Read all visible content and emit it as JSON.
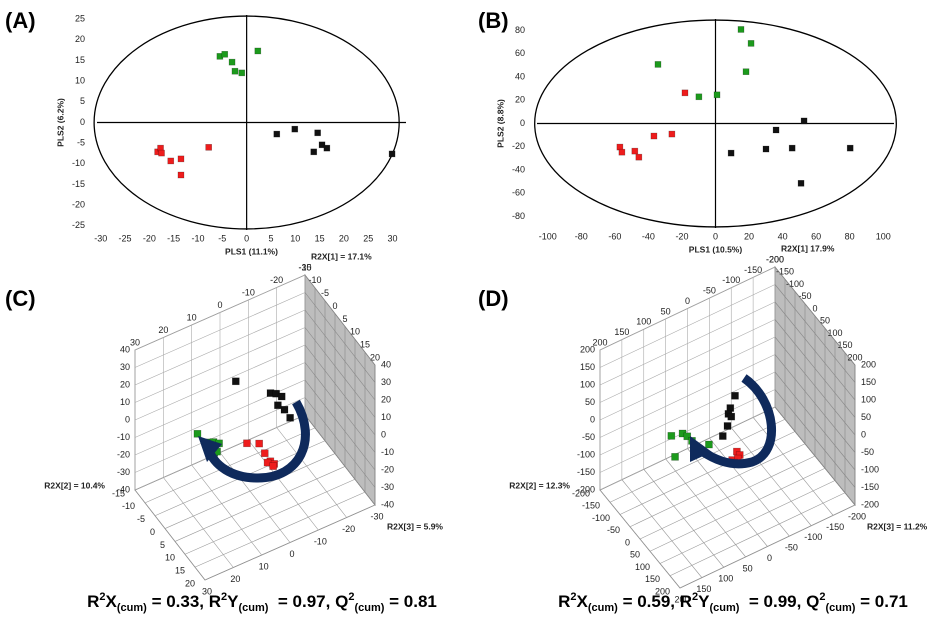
{
  "chart_data": [
    {
      "type": "scatter",
      "panel_label": "(A)",
      "xlabel": "PLS1 (11.1%)",
      "ylabel": "PLS2 (6.2%)",
      "xlim": [
        -32,
        34
      ],
      "ylim": [
        -26,
        26
      ],
      "xticks": [
        -30,
        -25,
        -20,
        -15,
        -10,
        -5,
        0,
        5,
        10,
        15,
        20,
        25,
        30
      ],
      "yticks": [
        -25,
        -20,
        -15,
        -10,
        -5,
        0,
        5,
        10,
        15,
        20,
        25
      ],
      "series": [
        {
          "color": "#1c9a1c",
          "x": [
            -5.5,
            -4.5,
            -3,
            -2.4,
            -1,
            2.3
          ],
          "values": [
            16,
            16.5,
            14.6,
            12.4,
            12,
            17.3
          ]
        },
        {
          "color": "#ee1c1c",
          "x": [
            -18.3,
            -17.7,
            -17.5,
            -15.6,
            -13.5,
            -13.5,
            -7.8
          ],
          "values": [
            -7.1,
            -6.2,
            -7.4,
            -9.3,
            -8.8,
            -12.7,
            -6
          ]
        },
        {
          "color": "#111111",
          "x": [
            6.2,
            9.9,
            14.6,
            13.8,
            15.5,
            16.5,
            29.9
          ],
          "values": [
            -2.8,
            -1.6,
            -2.5,
            -7.1,
            -5.4,
            -6.2,
            -7.6
          ]
        }
      ]
    },
    {
      "type": "scatter",
      "panel_label": "(B)",
      "xlabel": "PLS1 (10.5%)",
      "ylabel": "PLS2 (8.8%)",
      "xlim": [
        -110,
        110
      ],
      "ylim": [
        -90,
        90
      ],
      "xticks": [
        -100,
        -80,
        -60,
        -40,
        -20,
        0,
        20,
        40,
        60,
        80,
        100
      ],
      "yticks": [
        -80,
        -60,
        -40,
        -20,
        0,
        20,
        40,
        60,
        80
      ],
      "series": [
        {
          "color": "#1c9a1c",
          "x": [
            15.2,
            21.2,
            18.2,
            0.9,
            -9.9,
            -34.3
          ],
          "values": [
            81,
            69,
            44.6,
            24.7,
            23,
            50.9
          ]
        },
        {
          "color": "#ee1c1c",
          "x": [
            -18.2,
            -26,
            -36.7,
            -57,
            -48.1,
            -45.7,
            -55.8
          ],
          "values": [
            26.4,
            -9.1,
            -10.8,
            -20.3,
            -23.8,
            -29,
            -24.7
          ]
        },
        {
          "color": "#111111",
          "x": [
            52.8,
            36.1,
            30.1,
            45.7,
            9.3,
            80.3,
            51
          ],
          "values": [
            2.2,
            -5.6,
            -22,
            -21.2,
            -25.5,
            -21.2,
            -51.5
          ]
        }
      ]
    },
    {
      "type": "scatter3d",
      "panel_label": "(C)",
      "ylabel": "R2X[1] = 17.1%",
      "xlabel": "R2X[2] = 10.4%",
      "zlabel": "R2X[3] = 5.9%",
      "ylim": [
        -40,
        40
      ],
      "yticks": [
        -40,
        -30,
        -20,
        -10,
        0,
        10,
        20,
        30,
        40
      ],
      "xlim": [
        -15,
        20
      ],
      "xticks": [
        -15,
        -10,
        -5,
        0,
        5,
        10,
        15,
        20
      ],
      "zlim": [
        -30,
        30
      ],
      "zticks": [
        -30,
        -20,
        -10,
        0,
        10,
        20,
        30
      ],
      "series": [
        {
          "color": "#1c9a1c",
          "x": [
            -12.1,
            -6.5,
            -4.1,
            -1.3,
            -3.7,
            -2.3
          ],
          "values": [
            -17.9,
            -14.6,
            -10.9,
            -7.5,
            -16.4,
            -13.7
          ],
          "z": [
            10,
            10,
            10,
            10,
            10,
            10
          ]
        },
        {
          "color": "#ee1c1c",
          "x": [
            -8.6,
            -2.5,
            0.3,
            3.1,
            5,
            1.7,
            4.5
          ],
          "values": [
            -28.9,
            -20.1,
            -21.5,
            -22,
            -20.7,
            -24.8,
            -22.7
          ],
          "z": [
            -5,
            -5,
            -5,
            -5,
            -5,
            -5,
            -5
          ]
        },
        {
          "color": "#111111",
          "x": [
            -7.1,
            -11,
            -8.2,
            -5.4,
            -7.3,
            -4,
            -1.2
          ],
          "values": [
            12.3,
            -10.9,
            -7.1,
            -4.6,
            -12.4,
            -10.1,
            -10.6
          ],
          "z": [
            0,
            -15,
            -15,
            -15,
            -15,
            -15,
            -15
          ]
        }
      ],
      "caption": [
        "R",
        "2",
        "X",
        "(cum)",
        " = 0.33, R",
        "2",
        "Y",
        "(cum)",
        "  = 0.97, Q",
        "2",
        "(cum)",
        " = 0.81"
      ]
    },
    {
      "type": "scatter3d",
      "panel_label": "(D)",
      "ylabel": "R2X[1] 17.9%",
      "xlabel": "R2X[2] = 12.3%",
      "zlabel": "R2X[3] = 11.2%",
      "ylim": [
        -200,
        200
      ],
      "yticks": [
        -200,
        -150,
        -100,
        -50,
        0,
        50,
        100,
        150,
        200
      ],
      "xlim": [
        -200,
        200
      ],
      "xticks": [
        -200,
        -150,
        -100,
        -50,
        0,
        50,
        100,
        150,
        200
      ],
      "zlim": [
        -200,
        200
      ],
      "zticks": [
        -200,
        -150,
        -100,
        -50,
        0,
        50,
        100,
        150,
        200
      ],
      "series": [
        {
          "color": "#1c9a1c",
          "x": [
            -62,
            -5.9,
            17.6,
            41.2,
            -43.5,
            125.9
          ],
          "values": [
            -8,
            38,
            46.4,
            50,
            -55,
            98.8
          ],
          "z": [
            100,
            100,
            100,
            100,
            100,
            100
          ]
        },
        {
          "color": "#ee1c1c",
          "x": [
            47,
            61.2,
            23.5,
            51.8,
            33
          ],
          "values": [
            -36,
            -35.7,
            -76.6,
            -52.4,
            -77.2
          ],
          "z": [
            0,
            0,
            0,
            0,
            0
          ]
        },
        {
          "color": "#111111",
          "x": [
            37.6,
            14.1,
            4.7,
            18.8,
            0,
            -23.5
          ],
          "values": [
            117,
            65.4,
            42.2,
            44.3,
            4.3,
            -40.9
          ],
          "z": [
            0,
            0,
            0,
            0,
            0,
            0
          ]
        }
      ],
      "caption": [
        "R",
        "2",
        "X",
        "(cum)",
        " = 0.59, R",
        "2",
        "Y",
        "(cum)",
        "  = 0.99, Q",
        "2",
        "(cum)",
        " = 0.71"
      ]
    }
  ]
}
